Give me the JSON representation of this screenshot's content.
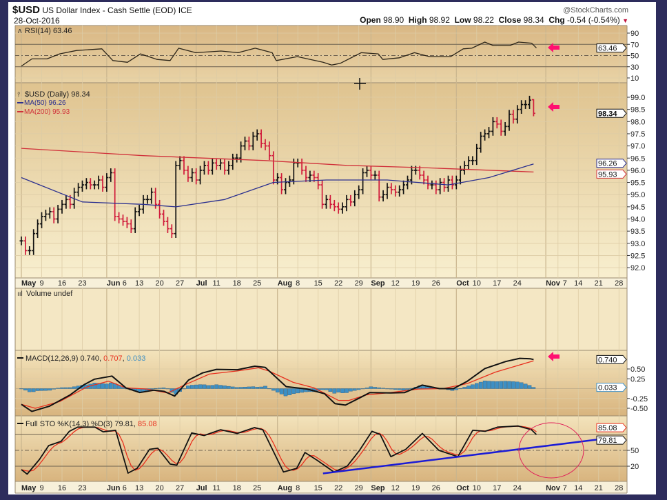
{
  "header": {
    "symbol": "$USD",
    "description": "US Dollar Index - Cash Settle (EOD) ICE",
    "date": "28-Oct-2016",
    "brand": "@StockCharts.com",
    "open_label": "Open",
    "open": "98.90",
    "high_label": "High",
    "high": "98.92",
    "low_label": "Low",
    "low": "98.22",
    "close_label": "Close",
    "close": "98.34",
    "chg_label": "Chg",
    "chg": "-0.54 (-0.54%)",
    "chg_arrow": "▼"
  },
  "legends": {
    "rsi": "RSI(14) 63.46",
    "price": "$USD (Daily) 98.34",
    "ma50": "MA(50) 96.26",
    "ma200": "MA(200) 95.93",
    "volume": "Volume undef",
    "macd_prefix": "MACD(12,26,9) 0.740, ",
    "macd_signal": "0.707",
    "macd_sep": ", ",
    "macd_hist": "0.033",
    "sto_prefix": "Full STO %K(14,3) %D(3) 79.81, ",
    "sto_d": "85.08"
  },
  "value_tags": {
    "rsi": "63.46",
    "price": "98.34",
    "ma50": "96.26",
    "ma200": "95.93",
    "macd": "0.740",
    "hist": "0.033",
    "sto_k": "79.81",
    "sto_d": "85.08"
  },
  "colors": {
    "up_bar": "#111111",
    "down_bar": "#d01a3a",
    "ma50": "#2a2f8f",
    "ma200": "#d0303a",
    "signal": "#e8301e",
    "histogram": "#3d8fc4",
    "trendline": "#1b1bd6",
    "annotation": "#ff1070",
    "circle": "#e0205a"
  },
  "chart_data": {
    "type": "bar",
    "title": "$USD US Dollar Index - Cash Settle (EOD) ICE",
    "x_unit": "trading-day index from 2-May-2016",
    "date_ticks": [
      {
        "label": "May",
        "i": 0,
        "month": true
      },
      {
        "label": "9",
        "i": 5
      },
      {
        "label": "16",
        "i": 10
      },
      {
        "label": "23",
        "i": 15
      },
      {
        "label": "Jun",
        "i": 21,
        "month": true
      },
      {
        "label": "6",
        "i": 24
      },
      {
        "label": "13",
        "i": 29
      },
      {
        "label": "20",
        "i": 34
      },
      {
        "label": "27",
        "i": 39
      },
      {
        "label": "Jul",
        "i": 43,
        "month": true
      },
      {
        "label": "11",
        "i": 48
      },
      {
        "label": "18",
        "i": 53
      },
      {
        "label": "25",
        "i": 58
      },
      {
        "label": "Aug",
        "i": 63,
        "month": true
      },
      {
        "label": "8",
        "i": 68
      },
      {
        "label": "15",
        "i": 73
      },
      {
        "label": "22",
        "i": 78
      },
      {
        "label": "29",
        "i": 83
      },
      {
        "label": "Sep",
        "i": 86,
        "month": true
      },
      {
        "label": "12",
        "i": 92
      },
      {
        "label": "19",
        "i": 97
      },
      {
        "label": "26",
        "i": 102
      },
      {
        "label": "Oct",
        "i": 107,
        "month": true
      },
      {
        "label": "10",
        "i": 112
      },
      {
        "label": "17",
        "i": 117
      },
      {
        "label": "24",
        "i": 122
      },
      {
        "label": "Nov",
        "i": 129,
        "month": true
      },
      {
        "label": "7",
        "i": 132
      },
      {
        "label": "14",
        "i": 137
      },
      {
        "label": "21",
        "i": 142
      },
      {
        "label": "28",
        "i": 147
      }
    ],
    "price": {
      "ylim": [
        91.6,
        99.5
      ],
      "ticks": [
        "99.0",
        "98.5",
        "98.0",
        "97.5",
        "97.0",
        "96.5",
        "96.0",
        "95.5",
        "95.0",
        "94.5",
        "94.0",
        "93.5",
        "93.0",
        "92.5",
        "92.0"
      ],
      "closes": [
        93.1,
        92.7,
        92.7,
        93.4,
        93.8,
        94.1,
        94.2,
        94.3,
        94.0,
        94.4,
        94.6,
        94.8,
        94.6,
        95.1,
        95.3,
        95.4,
        95.5,
        95.4,
        95.4,
        95.6,
        95.3,
        95.7,
        95.9,
        94.1,
        94.0,
        93.9,
        93.8,
        93.6,
        94.3,
        94.4,
        94.8,
        94.8,
        95.1,
        94.6,
        94.2,
        93.9,
        93.6,
        93.4,
        96.2,
        96.4,
        96.0,
        95.7,
        95.9,
        95.6,
        96.0,
        96.2,
        96.0,
        96.3,
        96.2,
        96.3,
        96.0,
        96.2,
        96.5,
        96.5,
        97.0,
        97.2,
        97.0,
        97.4,
        97.5,
        97.1,
        97.0,
        96.6,
        95.6,
        95.7,
        95.2,
        95.5,
        95.6,
        96.3,
        96.3,
        96.0,
        95.7,
        95.8,
        95.7,
        95.4,
        94.6,
        94.8,
        94.6,
        94.5,
        94.4,
        94.5,
        94.8,
        94.7,
        95.0,
        95.2,
        95.9,
        96.0,
        95.8,
        95.8,
        94.9,
        95.0,
        95.3,
        95.2,
        95.1,
        95.2,
        95.4,
        95.6,
        96.0,
        96.0,
        95.8,
        95.6,
        95.4,
        95.4,
        95.2,
        95.5,
        95.3,
        95.6,
        95.4,
        95.6,
        96.0,
        96.2,
        96.4,
        96.4,
        96.9,
        97.4,
        97.5,
        97.6,
        98.0,
        97.9,
        97.6,
        97.8,
        98.3,
        98.1,
        98.5,
        98.7,
        98.7,
        98.88,
        98.34
      ],
      "last_bar": {
        "open": 98.9,
        "high": 98.92,
        "low": 98.22,
        "close": 98.34
      },
      "ma50": [
        [
          0,
          95.7
        ],
        [
          15,
          94.7
        ],
        [
          30,
          94.6
        ],
        [
          38,
          94.5
        ],
        [
          50,
          94.8
        ],
        [
          62,
          95.5
        ],
        [
          75,
          95.6
        ],
        [
          90,
          95.6
        ],
        [
          105,
          95.4
        ],
        [
          115,
          95.7
        ],
        [
          126,
          96.26
        ]
      ],
      "ma200": [
        [
          0,
          96.9
        ],
        [
          30,
          96.6
        ],
        [
          60,
          96.4
        ],
        [
          80,
          96.2
        ],
        [
          100,
          96.1
        ],
        [
          126,
          95.93
        ]
      ]
    },
    "rsi": {
      "ylim": [
        0,
        100
      ],
      "ticks": [
        "90",
        "70",
        "50",
        "30",
        "10"
      ],
      "levels": [
        70,
        50,
        30
      ],
      "points": [
        [
          0,
          31
        ],
        [
          2.6,
          44
        ],
        [
          6.3,
          44
        ],
        [
          9.4,
          53
        ],
        [
          13.6,
          59
        ],
        [
          19.8,
          62
        ],
        [
          22.5,
          41
        ],
        [
          26.1,
          38
        ],
        [
          29.3,
          53
        ],
        [
          33.4,
          43
        ],
        [
          36.6,
          41
        ],
        [
          38.7,
          63
        ],
        [
          42.9,
          55
        ],
        [
          49.1,
          58
        ],
        [
          53.3,
          55
        ],
        [
          57.5,
          63
        ],
        [
          61.7,
          55
        ],
        [
          62.7,
          41
        ],
        [
          67.9,
          48
        ],
        [
          74.2,
          38
        ],
        [
          76.3,
          33
        ],
        [
          78.4,
          36
        ],
        [
          83.6,
          55
        ],
        [
          87.8,
          53
        ],
        [
          88.9,
          43
        ],
        [
          93,
          46
        ],
        [
          96.7,
          55
        ],
        [
          100.4,
          48
        ],
        [
          105.6,
          48
        ],
        [
          108.7,
          62
        ],
        [
          110.8,
          63
        ],
        [
          114,
          74
        ],
        [
          116,
          68
        ],
        [
          120.2,
          68
        ],
        [
          122.3,
          74
        ],
        [
          125.5,
          72
        ],
        [
          126.7,
          63.46
        ]
      ]
    },
    "macd": {
      "ticks": [
        "0.50",
        "0.25",
        "-0.25",
        "-0.50"
      ],
      "macd": [
        [
          0,
          -0.4
        ],
        [
          1.5,
          -0.58
        ],
        [
          4,
          -0.45
        ],
        [
          7,
          -0.16
        ],
        [
          9,
          0.1
        ],
        [
          10.5,
          0.24
        ],
        [
          13,
          0.32
        ],
        [
          15,
          0.02
        ],
        [
          17,
          -0.1
        ],
        [
          19,
          -0.04
        ],
        [
          20.5,
          -0.07
        ],
        [
          22,
          -0.19
        ],
        [
          24,
          0.22
        ],
        [
          26,
          0.4
        ],
        [
          28,
          0.49
        ],
        [
          31,
          0.48
        ],
        [
          33.5,
          0.57
        ],
        [
          35,
          0.54
        ],
        [
          38,
          0.05
        ],
        [
          41,
          -0.01
        ],
        [
          43.5,
          -0.13
        ],
        [
          45,
          -0.38
        ],
        [
          46.5,
          -0.42
        ],
        [
          48.5,
          -0.24
        ],
        [
          50,
          -0.1
        ],
        [
          53,
          -0.11
        ],
        [
          55,
          -0.1
        ],
        [
          57.5,
          0.09
        ],
        [
          60,
          0.0
        ],
        [
          62,
          0.0
        ],
        [
          64,
          0.19
        ],
        [
          66.5,
          0.51
        ],
        [
          69.5,
          0.69
        ],
        [
          71.5,
          0.77
        ],
        [
          73,
          0.76
        ],
        [
          73.5,
          0.74
        ]
      ],
      "signal": [
        [
          0,
          -0.4
        ],
        [
          2,
          -0.5
        ],
        [
          5.5,
          -0.33
        ],
        [
          9.5,
          0.05
        ],
        [
          12.5,
          0.19
        ],
        [
          15,
          0.02
        ],
        [
          18,
          -0.01
        ],
        [
          21,
          -0.11
        ],
        [
          23.5,
          0.1
        ],
        [
          27,
          0.37
        ],
        [
          31,
          0.45
        ],
        [
          34,
          0.53
        ],
        [
          35.5,
          0.45
        ],
        [
          39,
          0.16
        ],
        [
          42,
          0.02
        ],
        [
          45.5,
          -0.3
        ],
        [
          47,
          -0.3
        ],
        [
          49.5,
          -0.16
        ],
        [
          53,
          -0.1
        ],
        [
          57,
          -0.01
        ],
        [
          60.5,
          0.0
        ],
        [
          64,
          0.13
        ],
        [
          68,
          0.42
        ],
        [
          73.5,
          0.707
        ]
      ],
      "scale_note": "x in points of the source grid; script rescales to trading days"
    },
    "sto": {
      "ticks": [
        "50",
        "20"
      ],
      "levels": [
        80,
        50,
        20
      ],
      "k": [
        [
          0,
          13.6
        ],
        [
          0.7,
          5
        ],
        [
          2.2,
          33
        ],
        [
          3.3,
          59
        ],
        [
          4.8,
          67
        ],
        [
          5.8,
          86
        ],
        [
          6.8,
          94
        ],
        [
          8.9,
          94
        ],
        [
          9.9,
          85
        ],
        [
          11.4,
          88
        ],
        [
          12.9,
          7
        ],
        [
          14,
          16
        ],
        [
          15.5,
          52
        ],
        [
          16.5,
          54
        ],
        [
          18,
          24
        ],
        [
          18.8,
          22
        ],
        [
          20.6,
          83
        ],
        [
          22.1,
          78
        ],
        [
          24.1,
          89
        ],
        [
          26.1,
          82
        ],
        [
          28.2,
          93
        ],
        [
          29.2,
          89
        ],
        [
          31.7,
          9
        ],
        [
          33.3,
          16
        ],
        [
          34.3,
          46
        ],
        [
          35.8,
          31
        ],
        [
          37.8,
          9
        ],
        [
          39.4,
          20
        ],
        [
          40.9,
          50
        ],
        [
          42.4,
          86
        ],
        [
          43.4,
          80
        ],
        [
          44.7,
          38
        ],
        [
          46.5,
          52
        ],
        [
          48.5,
          82
        ],
        [
          50.5,
          50
        ],
        [
          52.8,
          38
        ],
        [
          54.6,
          88
        ],
        [
          56.1,
          86
        ],
        [
          57.6,
          94
        ],
        [
          60.1,
          96
        ],
        [
          61.7,
          89
        ],
        [
          62.3,
          79.81
        ]
      ],
      "d_last": 85.08,
      "trendline": [
        [
          74.2,
          6.3
        ],
        [
          145.9,
          74.4
        ]
      ]
    }
  }
}
